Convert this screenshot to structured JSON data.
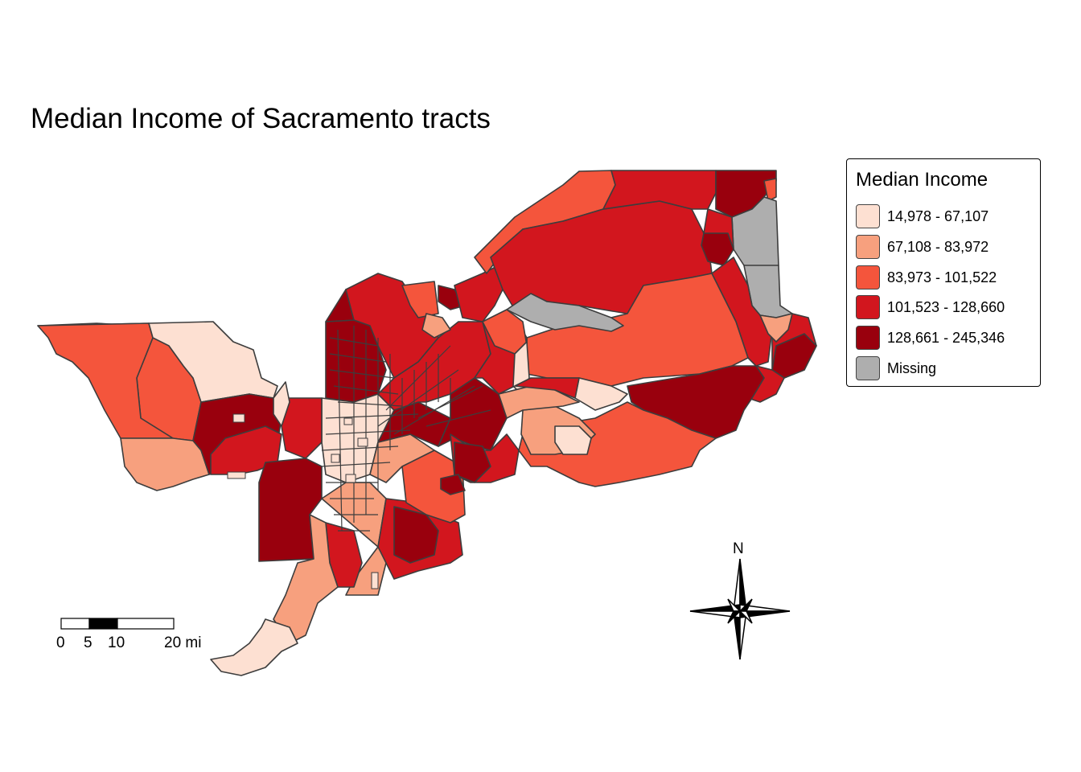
{
  "title": "Median Income of Sacramento tracts",
  "legend": {
    "title": "Median Income",
    "items": [
      {
        "label": "14,978 - 67,107",
        "color": "#fde0d2"
      },
      {
        "label": "67,108 - 83,972",
        "color": "#f7a07e"
      },
      {
        "label": "83,973 - 101,522",
        "color": "#f4553c"
      },
      {
        "label": "101,523 - 128,660",
        "color": "#d2161e"
      },
      {
        "label": "128,661 - 245,346",
        "color": "#99000d"
      },
      {
        "label": "Missing",
        "color": "#aeaeae"
      }
    ]
  },
  "scalebar": {
    "ticks": [
      "0",
      "5",
      "10",
      "20 mi"
    ]
  },
  "compass": {
    "label": "N"
  },
  "colors": {
    "border": "#3d3d3d"
  }
}
